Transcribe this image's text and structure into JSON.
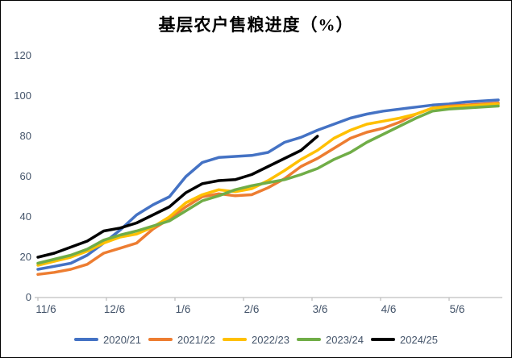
{
  "chart_data": {
    "type": "line",
    "title": "基层农户售粮进度（%）",
    "x_tick_labels": [
      "11/6",
      "12/6",
      "1/6",
      "2/6",
      "3/6",
      "4/6",
      "5/6"
    ],
    "y_ticks": [
      0,
      20,
      40,
      60,
      80,
      100,
      120
    ],
    "ylim": [
      0,
      120
    ],
    "grid": false,
    "legend_position": "bottom",
    "series": [
      {
        "name": "2020/21",
        "color": "#4472C4",
        "values": [
          14,
          15.5,
          17,
          21,
          27,
          33.5,
          41,
          46,
          50,
          60,
          67,
          69.5,
          70,
          70.5,
          72,
          77,
          79.5,
          83,
          86,
          89,
          91,
          92.5,
          93.5,
          94.5,
          95.5,
          96,
          97,
          97.5,
          98
        ]
      },
      {
        "name": "2021/22",
        "color": "#ED7D31",
        "values": [
          11.5,
          12.5,
          14,
          16.5,
          22,
          24.5,
          27,
          34,
          39,
          45,
          50,
          51.5,
          50.5,
          51,
          54.5,
          59,
          65,
          69,
          74,
          79,
          82,
          84,
          87,
          91,
          94,
          95,
          95.5,
          96,
          96.5
        ]
      },
      {
        "name": "2022/23",
        "color": "#FFC000",
        "values": [
          16,
          18,
          20,
          23,
          27,
          30,
          31.5,
          35,
          40,
          47,
          51,
          53.5,
          52.5,
          54,
          58,
          63,
          68.5,
          73,
          79,
          83,
          86,
          87.5,
          89,
          91,
          94,
          94.5,
          95,
          95.5,
          96
        ]
      },
      {
        "name": "2023/24",
        "color": "#70AD47",
        "values": [
          17,
          19,
          21,
          24,
          28.5,
          31,
          33,
          35.5,
          38,
          43,
          48,
          50.5,
          53.5,
          55.5,
          57,
          58.5,
          61,
          64,
          68.5,
          72,
          77,
          81,
          85,
          89,
          92.5,
          93.5,
          94,
          94.5,
          95
        ]
      },
      {
        "name": "2024/25",
        "color": "#000000",
        "values": [
          20,
          22,
          25,
          28,
          33,
          34.5,
          37,
          41,
          45,
          52,
          56.5,
          58,
          58.5,
          61,
          65,
          69,
          73,
          80
        ]
      }
    ]
  },
  "style": {
    "background": "#FFFFFF",
    "frame_border_color": "#000000",
    "axis_line_color": "#BFBFBF",
    "tick_label_color": "#44546A",
    "title_color": "#000000"
  }
}
